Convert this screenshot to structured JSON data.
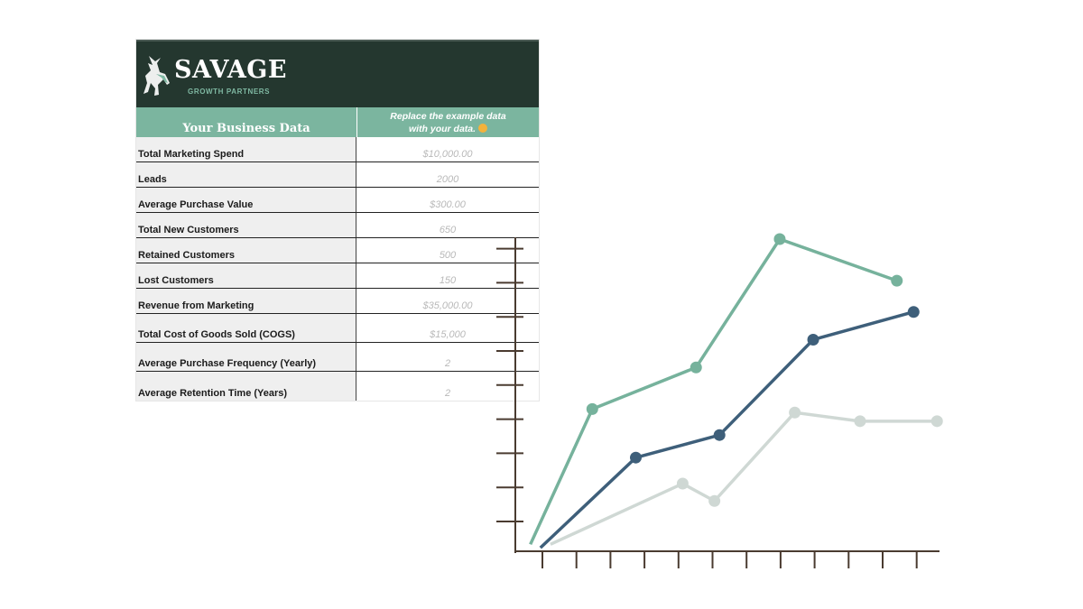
{
  "brand": {
    "name": "SAVAGE",
    "subtitle": "GROWTH PARTNERS"
  },
  "table": {
    "header_left": "Your Business Data",
    "header_right_line1": "Replace the example data",
    "header_right_line2": "with your data.",
    "hint_icon": "pointing-hand-icon",
    "rows": [
      {
        "label": "Total Marketing Spend",
        "value": "$10,000.00"
      },
      {
        "label": "Leads",
        "value": "2000"
      },
      {
        "label": "Average Purchase Value",
        "value": "$300.00"
      },
      {
        "label": "Total New Customers",
        "value": "650"
      },
      {
        "label": "Retained Customers",
        "value": "500"
      },
      {
        "label": "Lost Customers",
        "value": "150"
      },
      {
        "label": "Revenue from Marketing",
        "value": "$35,000.00"
      },
      {
        "label": "Total Cost of Goods Sold (COGS)",
        "value": "$15,000"
      },
      {
        "label": "Average Purchase Frequency (Yearly)",
        "value": "2"
      },
      {
        "label": "Average Retention Time (Years)",
        "value": "2"
      }
    ]
  },
  "colors": {
    "brand_dark": "#24372f",
    "brand_green": "#7bb59f",
    "series_green": "#76b29c",
    "series_navy": "#3e5f7a",
    "series_gray": "#cfd8d4",
    "axis": "#4a3b30"
  },
  "chart_data": {
    "type": "line",
    "title": "",
    "xlabel": "",
    "ylabel": "",
    "grid": false,
    "xlim": [
      0,
      12
    ],
    "ylim": [
      0,
      9
    ],
    "x_ticks": 12,
    "y_ticks": 9,
    "series": [
      {
        "color": "#76b29c",
        "points": [
          [
            0.45,
            0.2
          ],
          [
            2.3,
            4.1
          ],
          [
            5.4,
            5.3
          ],
          [
            7.9,
            9.0
          ],
          [
            11.4,
            7.8
          ]
        ],
        "marker_from": 1
      },
      {
        "color": "#3e5f7a",
        "points": [
          [
            0.75,
            0.1
          ],
          [
            3.6,
            2.7
          ],
          [
            6.1,
            3.35
          ],
          [
            8.9,
            6.1
          ],
          [
            11.9,
            6.9
          ]
        ],
        "marker_from": 1
      },
      {
        "color": "#cfd8d4",
        "points": [
          [
            1.05,
            0.2
          ],
          [
            5.0,
            1.95
          ],
          [
            5.95,
            1.45
          ],
          [
            8.35,
            4.0
          ],
          [
            10.3,
            3.75
          ],
          [
            12.6,
            3.75
          ]
        ],
        "marker_from": 1
      }
    ]
  }
}
